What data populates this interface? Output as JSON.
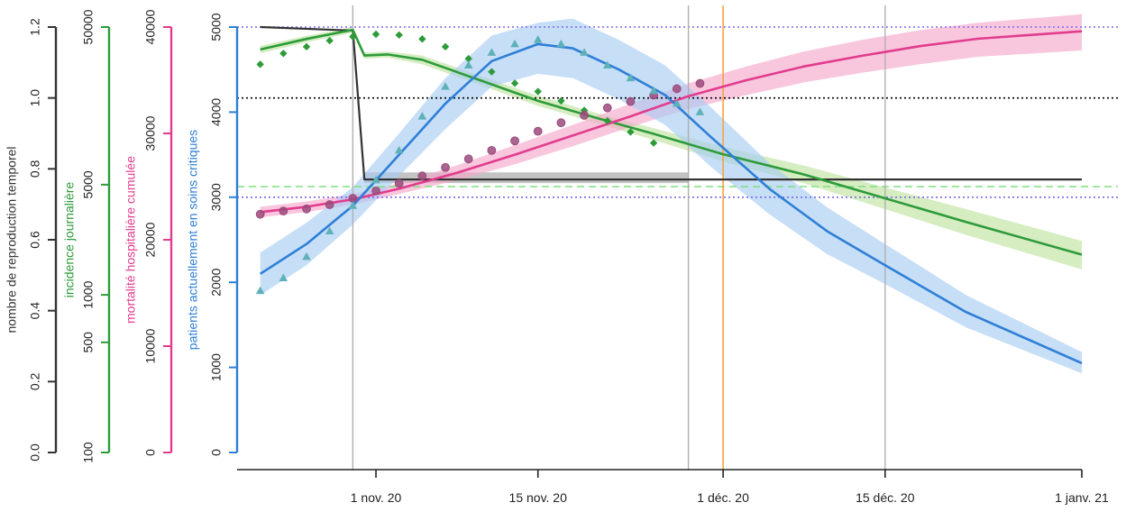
{
  "chart_data": {
    "type": "line",
    "colors": {
      "r": "#333333",
      "incidence": "#2e9b3a",
      "incidence_band": "#bfe3a0",
      "mortality": "#e23c8e",
      "mortality_band": "#f4a9cc",
      "mortality_points": "#9b4a7c",
      "icu": "#2e7fd6",
      "icu_band": "#a9cdf3",
      "icu_points": "#5fb1b8",
      "ref_dotted": "#7b68ee",
      "ref_dashed": "#7fe07f",
      "vline": "#b0b0b0",
      "orange_line": "#f5a340"
    },
    "x_axis": {
      "tick_labels": [
        "1 nov. 20",
        "15 nov. 20",
        "1 déc. 20",
        "15 déc. 20",
        "1 janv. 21"
      ],
      "tick_dates": [
        "2020-11-01",
        "2020-11-15",
        "2020-12-01",
        "2020-12-15",
        "2021-01-01"
      ],
      "range": [
        "2020-10-20",
        "2021-01-01"
      ]
    },
    "axes": [
      {
        "id": "r",
        "label": "nombre de reproduction temporel",
        "color": "#333333",
        "scale": "linear",
        "range": [
          0,
          1.2
        ],
        "ticks": [
          "0.0",
          "0.2",
          "0.4",
          "0.6",
          "0.8",
          "1.0",
          "1.2"
        ]
      },
      {
        "id": "incidence",
        "label": "incidence journalière",
        "color": "#2e9b3a",
        "scale": "log",
        "range": [
          100,
          50000
        ],
        "ticks": [
          "100",
          "500",
          "1000",
          "5000",
          "50000"
        ]
      },
      {
        "id": "mortality",
        "label": "mortalité hospitalière cumulée",
        "color": "#e23c8e",
        "scale": "linear",
        "range": [
          0,
          40000
        ],
        "ticks": [
          "0",
          "10000",
          "20000",
          "30000",
          "40000"
        ]
      },
      {
        "id": "icu",
        "label": "patients actuellement en soins critiques",
        "color": "#2e7fd6",
        "scale": "linear",
        "range": [
          0,
          5000
        ],
        "ticks": [
          "0",
          "1000",
          "2000",
          "3000",
          "4000",
          "5000"
        ]
      }
    ],
    "vertical_lines": [
      "2020-10-30",
      "2020-11-28",
      "2020-12-15"
    ],
    "orange_vertical_line": "2020-12-01",
    "reference_lines": [
      {
        "axis": "icu",
        "value": 5000,
        "style": "dotted",
        "color": "#7b68ee"
      },
      {
        "axis": "icu",
        "value": 3000,
        "style": "dotted",
        "color": "#7b68ee"
      },
      {
        "axis": "r",
        "value": 1.0,
        "style": "dotted",
        "color": "#000000"
      },
      {
        "axis": "r",
        "value": 0.75,
        "style": "dashed",
        "color": "#7fe07f"
      }
    ],
    "series": [
      {
        "axis": "r",
        "kind": "step-line",
        "x": [
          "2020-10-22",
          "2020-10-30",
          "2020-10-31",
          "2021-01-01"
        ],
        "y": [
          1.2,
          1.19,
          0.77,
          0.77
        ],
        "band_x": [
          "2020-10-31",
          "2020-11-28"
        ],
        "band_lower": [
          0.76,
          0.76
        ],
        "band_upper": [
          0.79,
          0.79
        ]
      },
      {
        "axis": "incidence",
        "kind": "line-with-band",
        "x": [
          "2020-10-22",
          "2020-10-26",
          "2020-10-30",
          "2020-10-31",
          "2020-11-02",
          "2020-11-05",
          "2020-11-10",
          "2020-11-15",
          "2020-11-20",
          "2020-11-25",
          "2020-12-01",
          "2020-12-08",
          "2020-12-15",
          "2020-12-22",
          "2021-01-01"
        ],
        "y": [
          36000,
          42000,
          48000,
          33000,
          33500,
          31000,
          23000,
          17000,
          13300,
          10500,
          7800,
          5800,
          4100,
          2900,
          1800
        ],
        "band_lower": [
          34000,
          40000,
          46000,
          31500,
          32000,
          29000,
          21500,
          15800,
          12300,
          9600,
          7000,
          5100,
          3500,
          2400,
          1450
        ],
        "band_upper": [
          38000,
          44000,
          50000,
          34500,
          35000,
          33000,
          24600,
          18300,
          14300,
          11400,
          8700,
          6600,
          4800,
          3500,
          2200
        ]
      },
      {
        "axis": "incidence",
        "kind": "points",
        "marker": "diamond",
        "x": [
          "2020-10-22",
          "2020-10-24",
          "2020-10-26",
          "2020-10-28",
          "2020-10-30",
          "2020-11-01",
          "2020-11-03",
          "2020-11-05",
          "2020-11-07",
          "2020-11-09",
          "2020-11-11",
          "2020-11-13",
          "2020-11-15",
          "2020-11-17",
          "2020-11-19",
          "2020-11-21",
          "2020-11-23",
          "2020-11-25"
        ],
        "y": [
          29000,
          34000,
          37500,
          41000,
          43500,
          45000,
          44500,
          42000,
          37500,
          31500,
          26000,
          22000,
          19500,
          17000,
          14800,
          12700,
          10800,
          9200
        ]
      },
      {
        "axis": "mortality",
        "kind": "line-with-band",
        "x": [
          "2020-10-22",
          "2020-10-26",
          "2020-10-30",
          "2020-11-03",
          "2020-11-08",
          "2020-11-13",
          "2020-11-18",
          "2020-11-23",
          "2020-11-28",
          "2020-12-03",
          "2020-12-08",
          "2020-12-13",
          "2020-12-18",
          "2020-12-23",
          "2021-01-01"
        ],
        "y": [
          22600,
          23100,
          23800,
          24800,
          26300,
          28000,
          29800,
          31600,
          33500,
          35000,
          36300,
          37300,
          38200,
          38900,
          39600
        ],
        "band_lower": [
          22100,
          22600,
          23300,
          24300,
          25600,
          27100,
          28800,
          30600,
          32300,
          33600,
          34800,
          35700,
          36500,
          37200,
          37800
        ],
        "band_upper": [
          23100,
          23600,
          24300,
          25300,
          27000,
          28900,
          30800,
          32800,
          34700,
          36300,
          37700,
          38800,
          39700,
          40400,
          41200
        ]
      },
      {
        "axis": "mortality",
        "kind": "points",
        "marker": "circle",
        "x": [
          "2020-10-22",
          "2020-10-24",
          "2020-10-26",
          "2020-10-28",
          "2020-10-30",
          "2020-11-01",
          "2020-11-03",
          "2020-11-05",
          "2020-11-07",
          "2020-11-09",
          "2020-11-11",
          "2020-11-13",
          "2020-11-15",
          "2020-11-17",
          "2020-11-19",
          "2020-11-21",
          "2020-11-23",
          "2020-11-25",
          "2020-11-27",
          "2020-11-29"
        ],
        "y": [
          22400,
          22700,
          22900,
          23300,
          23900,
          24600,
          25300,
          26000,
          26800,
          27600,
          28400,
          29300,
          30200,
          31000,
          31700,
          32400,
          33000,
          33600,
          34200,
          34700
        ]
      },
      {
        "axis": "icu",
        "kind": "line-with-band",
        "x": [
          "2020-10-22",
          "2020-10-26",
          "2020-10-30",
          "2020-11-03",
          "2020-11-07",
          "2020-11-11",
          "2020-11-15",
          "2020-11-18",
          "2020-11-22",
          "2020-11-26",
          "2020-11-30",
          "2020-12-05",
          "2020-12-10",
          "2020-12-15",
          "2020-12-22",
          "2021-01-01"
        ],
        "y": [
          2100,
          2450,
          2900,
          3500,
          4100,
          4600,
          4800,
          4750,
          4500,
          4200,
          3700,
          3100,
          2600,
          2200,
          1650,
          1050
        ],
        "band_lower": [
          1850,
          2200,
          2680,
          3250,
          3800,
          4300,
          4450,
          4400,
          4150,
          3850,
          3350,
          2800,
          2330,
          1980,
          1470,
          930
        ],
        "band_upper": [
          2350,
          2700,
          3120,
          3750,
          4400,
          4900,
          5050,
          5100,
          4850,
          4550,
          4050,
          3400,
          2880,
          2450,
          1850,
          1180
        ]
      },
      {
        "axis": "icu",
        "kind": "points",
        "marker": "triangle",
        "x": [
          "2020-10-22",
          "2020-10-24",
          "2020-10-26",
          "2020-10-28",
          "2020-10-30",
          "2020-11-01",
          "2020-11-03",
          "2020-11-05",
          "2020-11-07",
          "2020-11-09",
          "2020-11-11",
          "2020-11-13",
          "2020-11-15",
          "2020-11-17",
          "2020-11-19",
          "2020-11-21",
          "2020-11-23",
          "2020-11-25",
          "2020-11-27",
          "2020-11-29"
        ],
        "y": [
          1900,
          2050,
          2300,
          2600,
          2900,
          3200,
          3550,
          3950,
          4300,
          4550,
          4700,
          4800,
          4850,
          4800,
          4700,
          4550,
          4400,
          4250,
          4100,
          4000
        ]
      }
    ]
  }
}
